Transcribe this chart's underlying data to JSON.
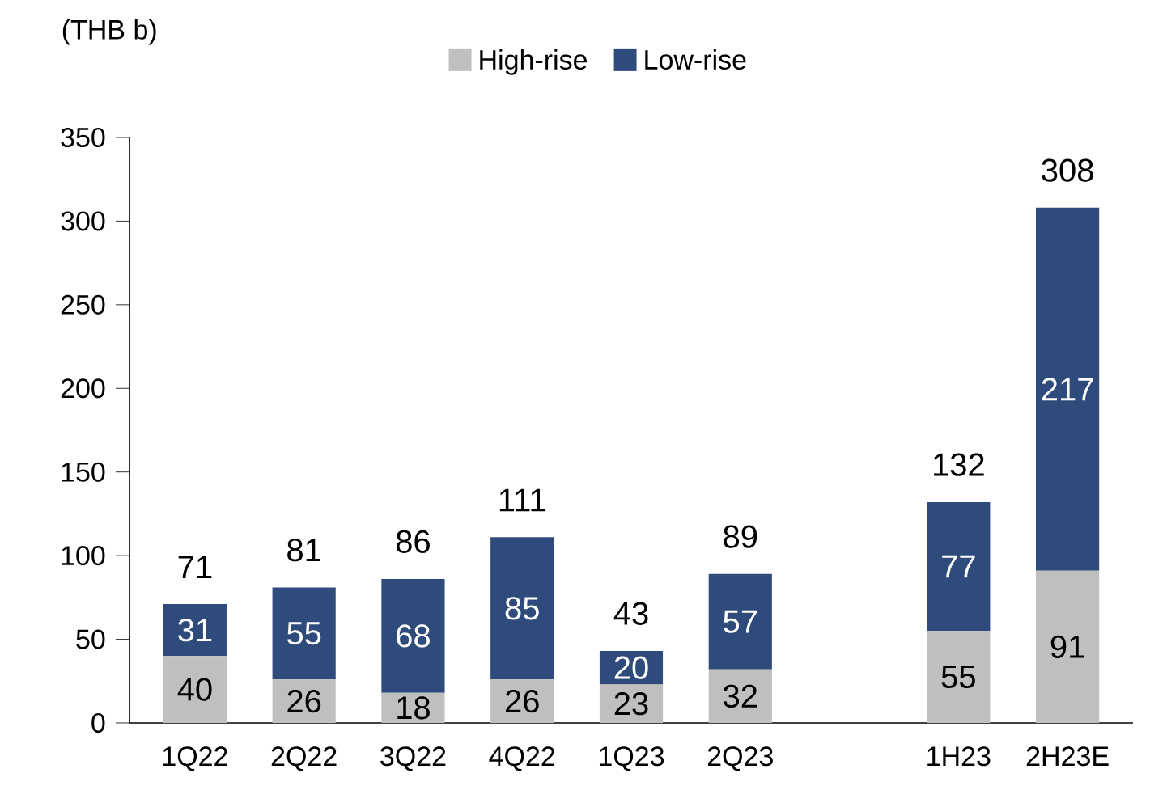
{
  "chart_data": {
    "type": "bar",
    "stacked": true,
    "ylabel": "(THB b)",
    "categories": [
      "1Q22",
      "2Q22",
      "3Q22",
      "4Q22",
      "1Q23",
      "2Q23",
      null,
      "1H23",
      "2H23E"
    ],
    "series": [
      {
        "name": "High-rise",
        "color": "#bfbfbf",
        "values": [
          40,
          26,
          18,
          26,
          23,
          32,
          null,
          55,
          91
        ]
      },
      {
        "name": "Low-rise",
        "color": "#2f4b7c",
        "values": [
          31,
          55,
          68,
          85,
          20,
          57,
          null,
          77,
          217
        ]
      }
    ],
    "totals": [
      "71",
      "81",
      "86",
      "111",
      "43",
      "89",
      null,
      "132",
      "308"
    ],
    "data_labels": true,
    "legend": "top",
    "grid": false,
    "ylim": [
      0,
      350
    ],
    "yticks": [
      0,
      50,
      100,
      150,
      200,
      250,
      300,
      350
    ]
  }
}
